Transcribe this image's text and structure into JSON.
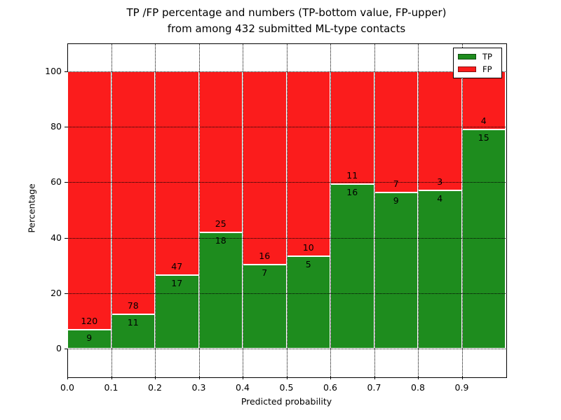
{
  "chart_data": {
    "type": "bar",
    "stacked": true,
    "title_line1": "TP /FP percentage and numbers (TP-bottom value, FP-upper)",
    "title_line2": "from among 432 submitted ML-type contacts",
    "xlabel": "Predicted probability",
    "ylabel": "Percentage",
    "total_contacts": 432,
    "xlim": [
      0.0,
      1.0
    ],
    "ylim": [
      -10,
      110
    ],
    "bin_width": 0.1,
    "bin_edges": [
      0.0,
      0.1,
      0.2,
      0.3,
      0.4,
      0.5,
      0.6,
      0.7,
      0.8,
      0.9,
      1.0
    ],
    "x_tick_labels": [
      "0.0",
      "0.1",
      "0.2",
      "0.3",
      "0.4",
      "0.5",
      "0.6",
      "0.7",
      "0.8",
      "0.9"
    ],
    "y_ticks": [
      0,
      20,
      40,
      60,
      80,
      100
    ],
    "grid": true,
    "legend_position": "upper right",
    "series": [
      {
        "name": "TP",
        "color": "#1e8c1e",
        "counts": [
          9,
          11,
          17,
          18,
          7,
          5,
          16,
          9,
          4,
          15
        ]
      },
      {
        "name": "FP",
        "color": "#fb1c1c",
        "counts": [
          120,
          78,
          47,
          25,
          16,
          10,
          11,
          7,
          3,
          4
        ]
      }
    ],
    "tp_percent": [
      6.98,
      12.36,
      26.56,
      41.86,
      30.43,
      33.33,
      59.26,
      56.25,
      57.14,
      78.95
    ],
    "fp_percent": [
      93.02,
      87.64,
      73.44,
      58.14,
      69.57,
      66.67,
      40.74,
      43.75,
      42.86,
      21.05
    ]
  }
}
